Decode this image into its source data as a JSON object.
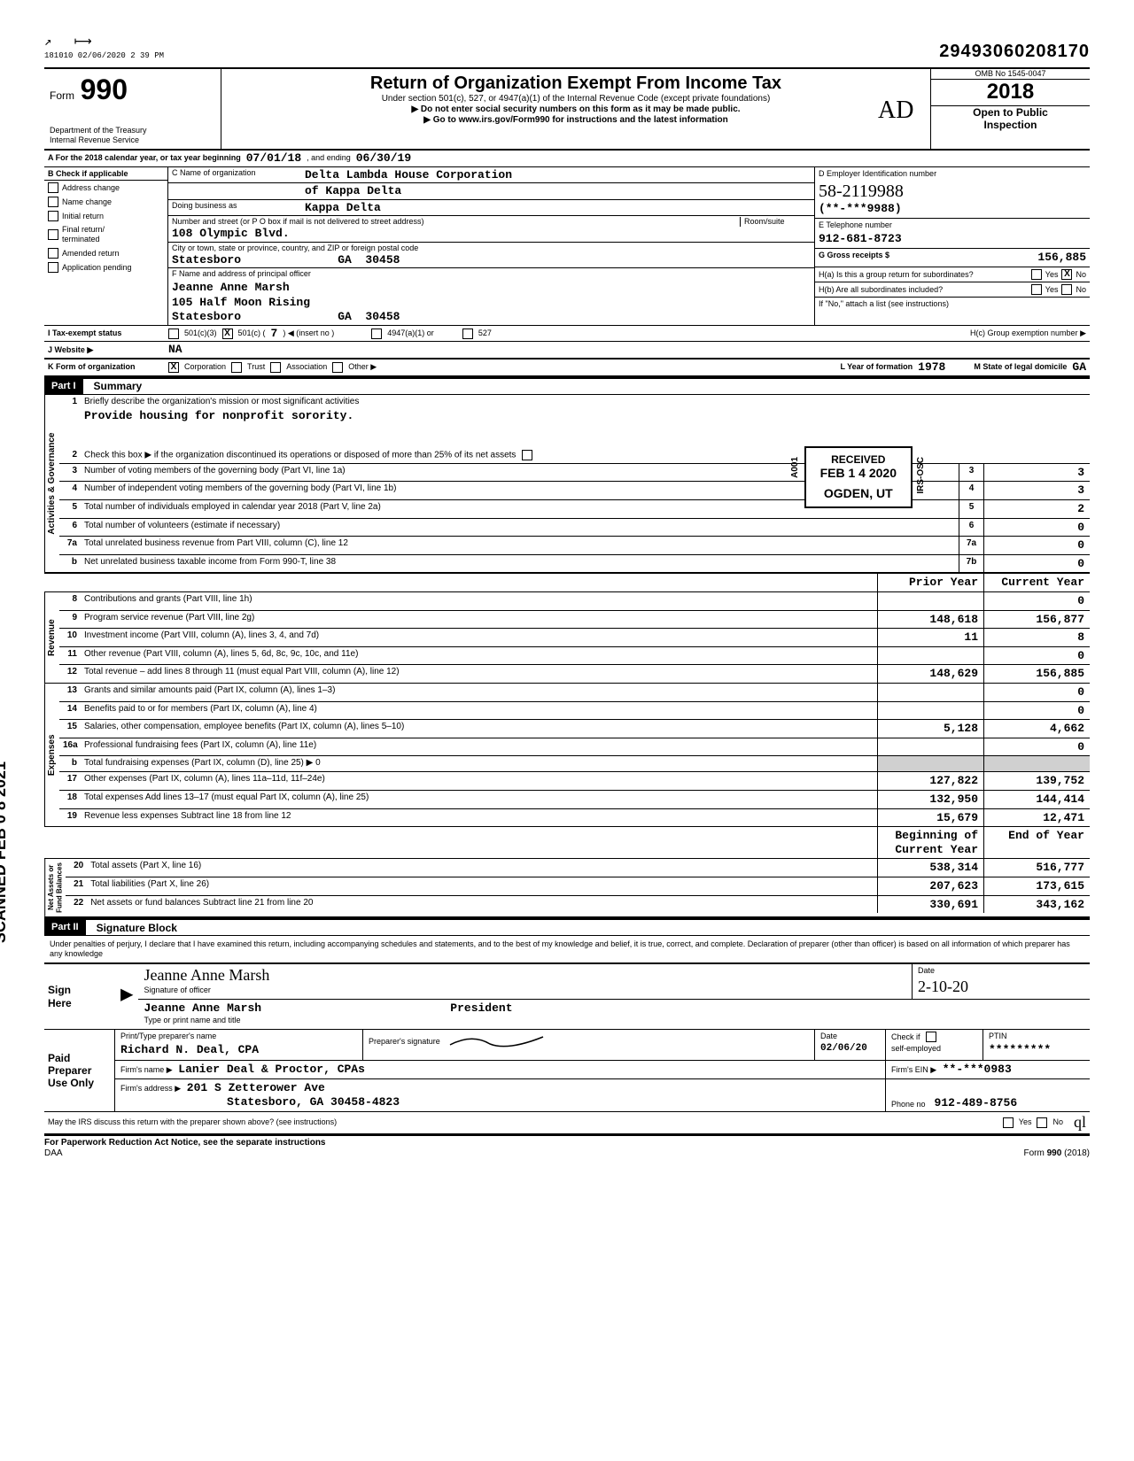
{
  "top": {
    "small_id": "181010 02/06/2020 2 39 PM",
    "dln": "29493060208170"
  },
  "header": {
    "form_word": "Form",
    "form_no": "990",
    "dept1": "Department of the Treasury",
    "dept2": "Internal Revenue Service",
    "title": "Return of Organization Exempt From Income Tax",
    "sub1": "Under section 501(c), 527, or 4947(a)(1) of the Internal Revenue Code (except private foundations)",
    "sub2": "▶ Do not enter social security numbers on this form as it may be made public.",
    "sub3": "▶ Go to www.irs.gov/Form990 for instructions and the latest information",
    "omb": "OMB No 1545-0047",
    "year": "2018",
    "open1": "Open to Public",
    "open2": "Inspection"
  },
  "lineA": {
    "prefix": "A   For the 2018 calendar year, or tax year beginning",
    "begin": "07/01/18",
    "mid": ", and ending",
    "end": "06/30/19"
  },
  "B": {
    "head": "B  Check if applicable",
    "items": [
      "Address change",
      "Name change",
      "Initial return",
      "Final return/\nterminated",
      "Amended return",
      "Application pending"
    ]
  },
  "C": {
    "name_label": "C  Name of organization",
    "name1": "Delta Lambda House Corporation",
    "name2": "of Kappa Delta",
    "dba_label": "Doing business as",
    "dba": "Kappa Delta",
    "street_label": "Number and street (or P O box if mail is not delivered to street address)",
    "street": "108 Olympic Blvd.",
    "room_label": "Room/suite",
    "city_label": "City or town, state or province, country, and ZIP or foreign postal code",
    "city": "Statesboro              GA  30458",
    "F_label": "F  Name and address of principal officer",
    "officer_name": "Jeanne Anne Marsh",
    "officer_street": "105 Half Moon Rising",
    "officer_city": "Statesboro              GA  30458"
  },
  "D": {
    "label": "D Employer Identification number",
    "hand": "58-2119988",
    "masked": "(**-***9988)"
  },
  "E": {
    "label": "E  Telephone number",
    "value": "912-681-8723"
  },
  "G": {
    "label": "G  Gross receipts $",
    "value": "156,885"
  },
  "H": {
    "a": "H(a) Is this a group return for subordinates?",
    "b": "H(b) Are all subordinates included?",
    "note": "If \"No,\" attach a list (see instructions)",
    "c": "H(c)  Group exemption number ▶",
    "yes": "Yes",
    "no": "No",
    "x": "X"
  },
  "I": {
    "label": "I      Tax-exempt status",
    "c3": "501(c)(3)",
    "c": "501(c)  (",
    "num": "7",
    "insert": ")  ◀ (insert no )",
    "a1": "4947(a)(1) or",
    "527": "527",
    "x": "X"
  },
  "J": {
    "label": "J     Website ▶",
    "value": "NA"
  },
  "K": {
    "label": "K    Form of organization",
    "corp": "Corporation",
    "trust": "Trust",
    "assoc": "Association",
    "other": "Other ▶",
    "x": "X",
    "L": "L   Year of formation",
    "Lval": "1978",
    "M": "M   State of legal domicile",
    "Mval": "GA"
  },
  "part1": {
    "head": "Part I",
    "title": "Summary"
  },
  "gov": {
    "vlabel": "Activities & Governance",
    "l1": "Briefly describe the organization's mission or most significant activities",
    "l1val": "Provide housing for nonprofit sorority.",
    "l2": "Check this box ▶          if the organization discontinued its operations or disposed of more than 25% of its net assets",
    "l3": "Number of voting members of the governing body (Part VI, line 1a)",
    "l4": "Number of independent voting members of the governing body (Part VI, line 1b)",
    "l5": "Total number of individuals employed in calendar year 2018 (Part V, line 2a)",
    "l6": "Total number of volunteers (estimate if necessary)",
    "l7a": "Total unrelated business revenue from Part VIII, column (C), line 12",
    "l7b": "Net unrelated business taxable income from Form 990-T, line 38",
    "v3": "3",
    "v4": "3",
    "v5": "2",
    "v6": "0",
    "v7a": "0",
    "v7b": "0"
  },
  "stamp": {
    "received": "RECEIVED",
    "date": "FEB 1 4 2020",
    "place": "OGDEN, UT",
    "side": "IRS-OSC",
    "side2": "A001"
  },
  "cols": {
    "prior": "Prior Year",
    "current": "Current Year",
    "begin": "Beginning of Current Year",
    "end": "End of Year"
  },
  "rev": {
    "vlabel": "Revenue",
    "rows": [
      {
        "n": "8",
        "d": "Contributions and grants (Part VIII, line 1h)",
        "p": "",
        "c": "0"
      },
      {
        "n": "9",
        "d": "Program service revenue (Part VIII, line 2g)",
        "p": "148,618",
        "c": "156,877"
      },
      {
        "n": "10",
        "d": "Investment income (Part VIII, column (A), lines 3, 4, and 7d)",
        "p": "11",
        "c": "8"
      },
      {
        "n": "11",
        "d": "Other revenue (Part VIII, column (A), lines 5, 6d, 8c, 9c, 10c, and 11e)",
        "p": "",
        "c": "0"
      },
      {
        "n": "12",
        "d": "Total revenue – add lines 8 through 11 (must equal Part VIII, column (A), line 12)",
        "p": "148,629",
        "c": "156,885"
      }
    ]
  },
  "exp": {
    "vlabel": "Expenses",
    "rows": [
      {
        "n": "13",
        "d": "Grants and similar amounts paid (Part IX, column (A), lines 1–3)",
        "p": "",
        "c": "0"
      },
      {
        "n": "14",
        "d": "Benefits paid to or for members (Part IX, column (A), line 4)",
        "p": "",
        "c": "0"
      },
      {
        "n": "15",
        "d": "Salaries, other compensation, employee benefits (Part IX, column (A), lines 5–10)",
        "p": "5,128",
        "c": "4,662"
      },
      {
        "n": "16a",
        "d": "Professional fundraising fees (Part IX, column (A), line 11e)",
        "p": "",
        "c": "0"
      },
      {
        "n": "b",
        "d": "Total fundraising expenses (Part IX, column (D), line 25) ▶                                            0",
        "p": "GREY",
        "c": "GREY"
      },
      {
        "n": "17",
        "d": "Other expenses (Part IX, column (A), lines 11a–11d, 11f–24e)",
        "p": "127,822",
        "c": "139,752"
      },
      {
        "n": "18",
        "d": "Total expenses  Add lines 13–17 (must equal Part IX, column (A), line 25)",
        "p": "132,950",
        "c": "144,414"
      },
      {
        "n": "19",
        "d": "Revenue less expenses  Subtract line 18 from line 12",
        "p": "15,679",
        "c": "12,471"
      }
    ]
  },
  "net": {
    "vlabel": "Net Assets or\nFund Balances",
    "rows": [
      {
        "n": "20",
        "d": "Total assets (Part X, line 16)",
        "p": "538,314",
        "c": "516,777"
      },
      {
        "n": "21",
        "d": "Total liabilities (Part X, line 26)",
        "p": "207,623",
        "c": "173,615"
      },
      {
        "n": "22",
        "d": "Net assets or fund balances  Subtract line 21 from line 20",
        "p": "330,691",
        "c": "343,162"
      }
    ]
  },
  "part2": {
    "head": "Part II",
    "title": "Signature Block"
  },
  "sig": {
    "decl": "Under penalties of perjury, I declare that I have examined this return, including accompanying schedules and statements, and to the best of my knowledge and belief, it is true, correct, and complete. Declaration of preparer (other than officer) is based on all information of which preparer has any knowledge",
    "sign_here": "Sign\nHere",
    "sig_cursive": "Jeanne Anne Marsh",
    "sig_label": "Signature of officer",
    "name_printed": "Jeanne Anne Marsh",
    "name_label": "Type or print name and title",
    "title": "President",
    "date_label": "Date",
    "date_hand": "2-10-20",
    "paid": "Paid\nPreparer\nUse Only",
    "prep_name_label": "Print/Type preparer's name",
    "prep_name": "Richard N. Deal, CPA",
    "prep_sig_label": "Preparer's signature",
    "prep_date_label": "Date",
    "prep_date": "02/06/20",
    "check_label": "Check          if",
    "self": "self-employed",
    "ptin_label": "PTIN",
    "ptin": "*********",
    "firm_name_label": "Firm's name    ▶",
    "firm_name": "Lanier Deal & Proctor, CPAs",
    "firm_ein_label": "Firm's EIN ▶",
    "firm_ein": "**-***0983",
    "firm_addr_label": "Firm's address    ▶",
    "firm_addr1": "201 S Zetterower Ave",
    "firm_addr2": "Statesboro, GA   30458-4823",
    "phone_label": "Phone no",
    "phone": "912-489-8756",
    "may": "May the IRS discuss this return with the preparer shown above? (see instructions)",
    "yes": "Yes",
    "no": "No"
  },
  "footer": {
    "left": "For Paperwork Reduction Act Notice, see the separate instructions",
    "daa": "DAA",
    "right": "Form 990 (2018)"
  },
  "scanned": "SCANNED FEB 0 8 2021",
  "initials": "AD"
}
